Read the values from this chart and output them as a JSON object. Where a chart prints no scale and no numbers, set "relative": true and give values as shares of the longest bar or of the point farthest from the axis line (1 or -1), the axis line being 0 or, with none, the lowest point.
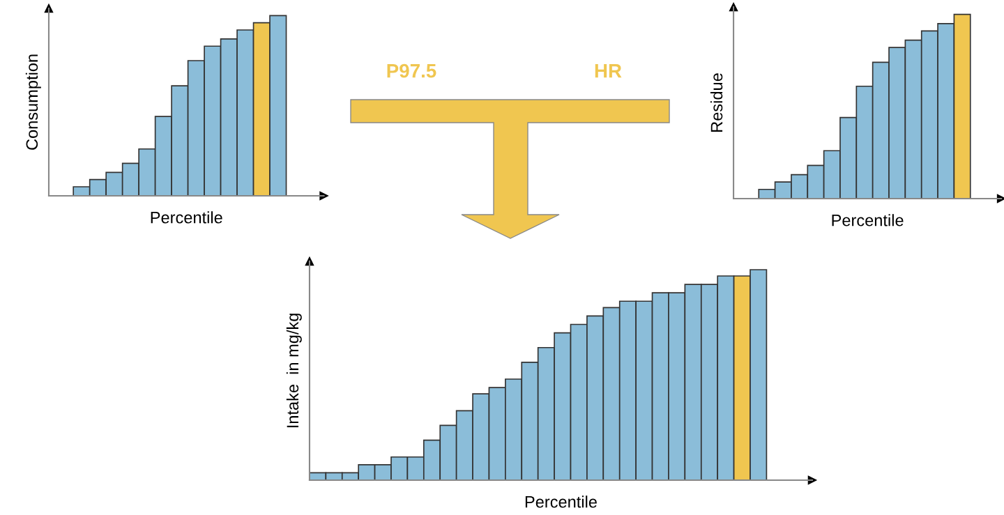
{
  "chart_data": [
    {
      "type": "bar",
      "relative": true,
      "ylabel": "Consumption",
      "xlabel": "Percentile",
      "categories": [
        null,
        null,
        null,
        null,
        null,
        null,
        null,
        null,
        null,
        null,
        null,
        null,
        null
      ],
      "values": [
        0.05,
        0.09,
        0.13,
        0.18,
        0.26,
        0.44,
        0.61,
        0.75,
        0.83,
        0.87,
        0.92,
        0.96,
        1
      ],
      "colors": [
        "#8bbdd9",
        "#8bbdd9",
        "#8bbdd9",
        "#8bbdd9",
        "#8bbdd9",
        "#8bbdd9",
        "#8bbdd9",
        "#8bbdd9",
        "#8bbdd9",
        "#8bbdd9",
        "#8bbdd9",
        "#f0c650",
        "#8bbdd9"
      ]
    },
    {
      "type": "bar",
      "relative": true,
      "ylabel": "Residue",
      "xlabel": "Percentile",
      "categories": [
        null,
        null,
        null,
        null,
        null,
        null,
        null,
        null,
        null,
        null,
        null,
        null,
        null
      ],
      "values": [
        0.05,
        0.09,
        0.13,
        0.18,
        0.26,
        0.44,
        0.61,
        0.74,
        0.82,
        0.86,
        0.91,
        0.95,
        1
      ],
      "colors": [
        "#8bbdd9",
        "#8bbdd9",
        "#8bbdd9",
        "#8bbdd9",
        "#8bbdd9",
        "#8bbdd9",
        "#8bbdd9",
        "#8bbdd9",
        "#8bbdd9",
        "#8bbdd9",
        "#8bbdd9",
        "#8bbdd9",
        "#f0c650"
      ]
    },
    {
      "type": "other",
      "annotations": [
        "P97.5",
        "HR"
      ]
    },
    {
      "type": "bar",
      "relative": true,
      "ylabel": "Intake  in mg/kg",
      "xlabel": "Percentile",
      "categories": [
        null,
        null,
        null,
        null,
        null,
        null,
        null,
        null,
        null,
        null,
        null,
        null,
        null,
        null,
        null,
        null,
        null,
        null,
        null,
        null,
        null,
        null,
        null,
        null,
        null,
        null,
        null,
        null
      ],
      "values": [
        0.035,
        0.035,
        0.035,
        0.073,
        0.073,
        0.11,
        0.11,
        0.19,
        0.26,
        0.33,
        0.41,
        0.44,
        0.48,
        0.56,
        0.63,
        0.7,
        0.74,
        0.78,
        0.82,
        0.85,
        0.85,
        0.89,
        0.89,
        0.93,
        0.93,
        0.97,
        0.97,
        1
      ],
      "colors": [
        "#8bbdd9",
        "#8bbdd9",
        "#8bbdd9",
        "#8bbdd9",
        "#8bbdd9",
        "#8bbdd9",
        "#8bbdd9",
        "#8bbdd9",
        "#8bbdd9",
        "#8bbdd9",
        "#8bbdd9",
        "#8bbdd9",
        "#8bbdd9",
        "#8bbdd9",
        "#8bbdd9",
        "#8bbdd9",
        "#8bbdd9",
        "#8bbdd9",
        "#8bbdd9",
        "#8bbdd9",
        "#8bbdd9",
        "#8bbdd9",
        "#8bbdd9",
        "#8bbdd9",
        "#8bbdd9",
        "#8bbdd9",
        "#f0c650",
        "#8bbdd9"
      ]
    }
  ]
}
